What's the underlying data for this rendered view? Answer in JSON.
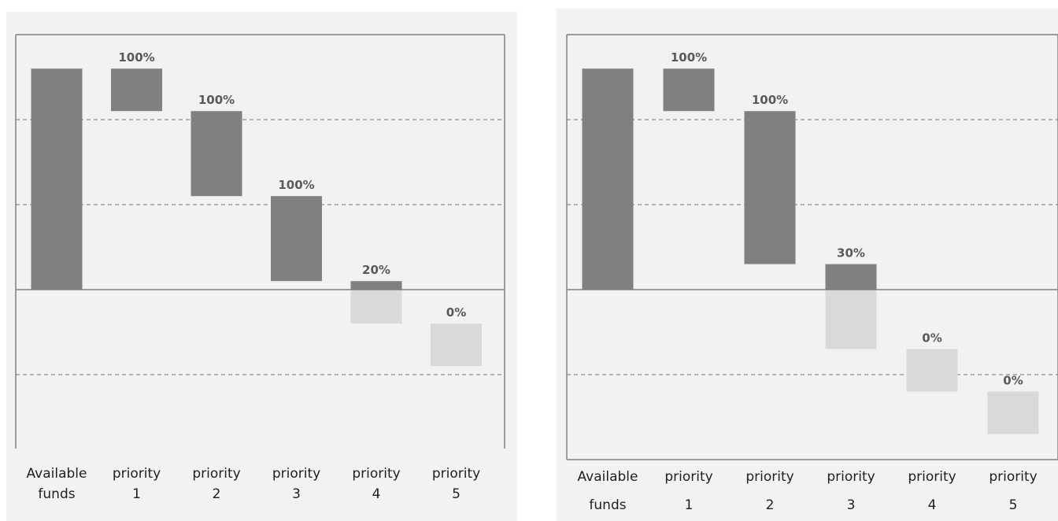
{
  "colors": {
    "panel_bg": "#f2f2f2",
    "bar_filled": "#808080",
    "bar_unfilled": "#d9d9d9",
    "axis": "#7f7f7f",
    "grid": "#8c8c8c",
    "label": "#595959"
  },
  "chart_data": [
    {
      "type": "bar",
      "subtype": "waterfall",
      "categories": [
        "Available funds",
        "priority 1",
        "priority 2",
        "priority 3",
        "priority 4",
        "priority 5"
      ],
      "category_lines": [
        [
          "Available",
          "funds"
        ],
        [
          "priority",
          "1"
        ],
        [
          "priority",
          "2"
        ],
        [
          "priority",
          "3"
        ],
        [
          "priority",
          "4"
        ],
        [
          "priority",
          "5"
        ]
      ],
      "bars": [
        {
          "category": "Available funds",
          "filled": [
            0,
            2.6
          ],
          "unfilled": null,
          "label": ""
        },
        {
          "category": "priority 1",
          "filled": [
            2.1,
            2.6
          ],
          "unfilled": null,
          "label": "100%"
        },
        {
          "category": "priority 2",
          "filled": [
            1.1,
            2.1
          ],
          "unfilled": null,
          "label": "100%"
        },
        {
          "category": "priority 3",
          "filled": [
            0.1,
            1.1
          ],
          "unfilled": null,
          "label": "100%"
        },
        {
          "category": "priority 4",
          "filled": [
            0,
            0.1
          ],
          "unfilled": [
            -0.4,
            0
          ],
          "label": "20%"
        },
        {
          "category": "priority 5",
          "filled": null,
          "unfilled": [
            -0.9,
            -0.4
          ],
          "label": "0%"
        }
      ],
      "ylim": [
        -1.9,
        3.0
      ],
      "gridlines": [
        2.0,
        1.0,
        -1.0
      ],
      "grid": true,
      "legend": "none"
    },
    {
      "type": "bar",
      "subtype": "waterfall",
      "categories": [
        "Available funds",
        "priority 1",
        "priority 2",
        "priority 3",
        "priority 4",
        "priority 5"
      ],
      "category_lines": [
        [
          "Available",
          "funds"
        ],
        [
          "priority",
          "1"
        ],
        [
          "priority",
          "2"
        ],
        [
          "priority",
          "3"
        ],
        [
          "priority",
          "4"
        ],
        [
          "priority",
          "5"
        ]
      ],
      "bars": [
        {
          "category": "Available funds",
          "filled": [
            0,
            2.6
          ],
          "unfilled": null,
          "label": ""
        },
        {
          "category": "priority 1",
          "filled": [
            2.1,
            2.6
          ],
          "unfilled": null,
          "label": "100%"
        },
        {
          "category": "priority 2",
          "filled": [
            0.3,
            2.1
          ],
          "unfilled": null,
          "label": "100%"
        },
        {
          "category": "priority 3",
          "filled": [
            0,
            0.3
          ],
          "unfilled": [
            -0.7,
            0
          ],
          "label": "30%"
        },
        {
          "category": "priority 4",
          "filled": null,
          "unfilled": [
            -1.2,
            -0.7
          ],
          "label": "0%"
        },
        {
          "category": "priority 5",
          "filled": null,
          "unfilled": [
            -1.7,
            -1.2
          ],
          "label": "0%"
        }
      ],
      "ylim": [
        -2.0,
        3.0
      ],
      "gridlines": [
        2.0,
        1.0,
        -1.0
      ],
      "grid": true,
      "legend": "none"
    }
  ]
}
